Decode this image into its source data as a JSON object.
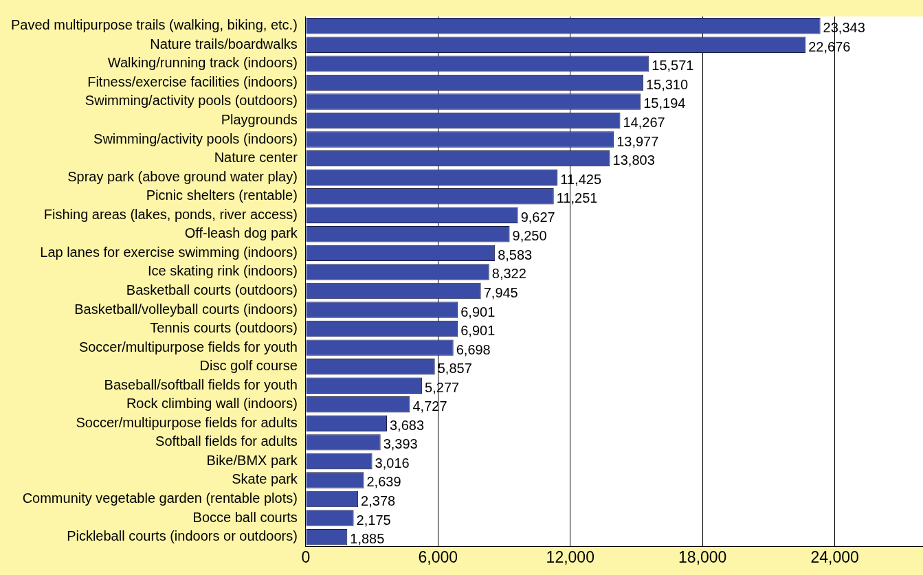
{
  "chart_data": {
    "type": "bar",
    "orientation": "horizontal",
    "categories": [
      "Paved multipurpose trails (walking, biking, etc.)",
      "Nature trails/boardwalks",
      "Walking/running track (indoors)",
      "Fitness/exercise facilities (indoors)",
      "Swimming/activity pools (outdoors)",
      "Playgrounds",
      "Swimming/activity pools (indoors)",
      "Nature center",
      "Spray park (above ground water play)",
      "Picnic shelters (rentable)",
      "Fishing areas (lakes, ponds, river access)",
      "Off-leash dog park",
      "Lap lanes for exercise swimming (indoors)",
      "Ice skating rink (indoors)",
      "Basketball courts (outdoors)",
      "Basketball/volleyball courts (indoors)",
      "Tennis courts (outdoors)",
      "Soccer/multipurpose fields for youth",
      "Disc golf course",
      "Baseball/softball fields for youth",
      "Rock climbing wall (indoors)",
      "Soccer/multipurpose fields for adults",
      "Softball fields for adults",
      "Bike/BMX park",
      "Skate park",
      "Community vegetable garden (rentable plots)",
      "Bocce ball courts",
      "Pickleball courts (indoors or outdoors)"
    ],
    "values": [
      23343,
      22676,
      15571,
      15310,
      15194,
      14267,
      13977,
      13803,
      11425,
      11251,
      9627,
      9250,
      8583,
      8322,
      7945,
      6901,
      6901,
      6698,
      5857,
      5277,
      4727,
      3683,
      3393,
      3016,
      2639,
      2378,
      2175,
      1885
    ],
    "value_labels": [
      "23,343",
      "22,676",
      "15,571",
      "15,310",
      "15,194",
      "14,267",
      "13,977",
      "13,803",
      "11,425",
      "11,251",
      "9,627",
      "9,250",
      "8,583",
      "8,322",
      "7,945",
      "6,901",
      "6,901",
      "6,698",
      "5,857",
      "5,277",
      "4,727",
      "3,683",
      "3,393",
      "3,016",
      "2,639",
      "2,378",
      "2,175",
      "1,885"
    ],
    "color": "#3a4ca6",
    "xlim": [
      0,
      28000
    ],
    "xticks": [
      {
        "value": 0,
        "label": "0"
      },
      {
        "value": 6000,
        "label": "6,000"
      },
      {
        "value": 12000,
        "label": "12,000"
      },
      {
        "value": 18000,
        "label": "18,000"
      },
      {
        "value": 24000,
        "label": "24,000"
      }
    ],
    "grid": "x",
    "legend": false
  }
}
